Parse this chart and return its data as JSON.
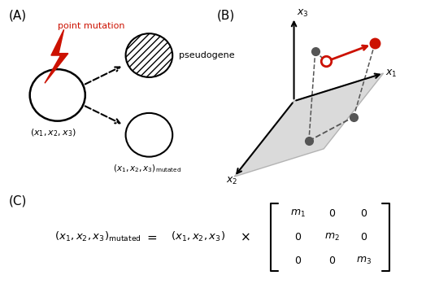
{
  "bg_color": "#ffffff",
  "label_A": "(A)",
  "label_B": "(B)",
  "label_C": "(C)",
  "point_mutation_text": "point mutation",
  "pseudogene_text": "pseudogene",
  "red_color": "#cc1100",
  "dark_gray": "#555555",
  "plane_color": "#d4d4d4"
}
